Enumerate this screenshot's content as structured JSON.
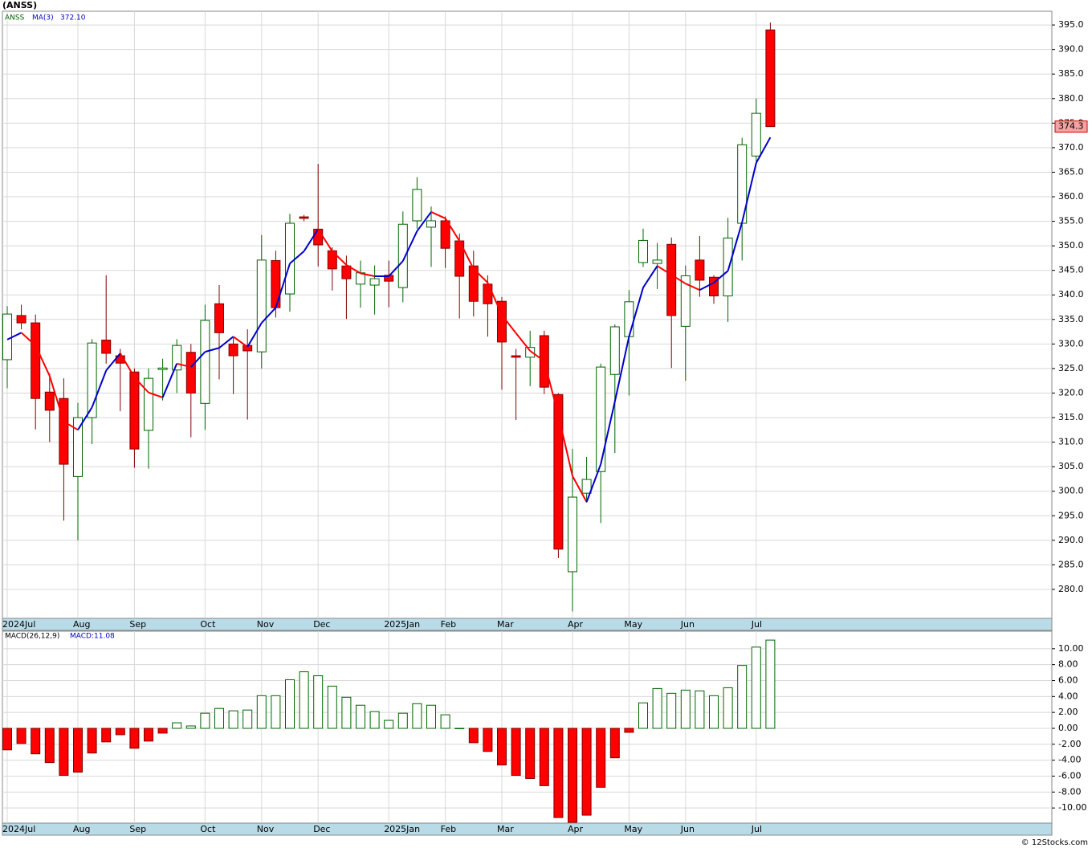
{
  "title": "(ANSS)",
  "footer": "© 12Stocks.com",
  "chart_data": [
    {
      "type": "candlestick",
      "name": "ANSS",
      "categories": [
        "2024Jul",
        null,
        null,
        null,
        null,
        "Aug",
        null,
        null,
        null,
        "Sep",
        null,
        null,
        null,
        null,
        "Oct",
        null,
        null,
        null,
        "Nov",
        null,
        null,
        null,
        "Dec",
        null,
        null,
        null,
        null,
        "2025Jan",
        null,
        null,
        null,
        "Feb",
        null,
        null,
        null,
        "Mar",
        null,
        null,
        null,
        null,
        "Apr",
        null,
        null,
        null,
        "May",
        null,
        null,
        null,
        "Jun",
        null,
        null,
        null,
        null,
        "Jul",
        null
      ],
      "open": [
        326.8,
        335.8,
        334.3,
        320.2,
        318.9,
        303.0,
        315.0,
        330.8,
        327.6,
        324.3,
        312.4,
        324.8,
        324.7,
        328.3,
        317.9,
        338.2,
        330.0,
        329.7,
        328.4,
        347.0,
        340.2,
        355.9,
        353.4,
        349.0,
        345.9,
        342.2,
        342.0,
        344.0,
        341.5,
        355.1,
        353.8,
        355.1,
        351.0,
        345.9,
        342.2,
        338.7,
        327.6,
        327.3,
        331.7,
        319.7,
        283.6,
        299.6,
        304.0,
        323.8,
        331.5,
        346.6,
        346.4,
        350.3,
        333.6,
        347.1,
        343.6,
        339.8,
        354.6,
        368.3,
        394.0
      ],
      "high": [
        337.7,
        338.0,
        336.0,
        324.0,
        323.0,
        318.0,
        331.0,
        344.0,
        329.0,
        325.0,
        325.0,
        327.0,
        331.0,
        330.0,
        338.0,
        342.0,
        331.5,
        333.0,
        352.2,
        349.0,
        356.5,
        356.3,
        366.7,
        349.7,
        348.0,
        347.0,
        346.0,
        347.0,
        357.0,
        364.0,
        358.0,
        356.0,
        352.5,
        349.0,
        344.0,
        339.6,
        329.0,
        332.7,
        332.7,
        320.0,
        308.6,
        307.0,
        326.0,
        334.0,
        341.0,
        353.5,
        350.6,
        351.7,
        346.0,
        352.0,
        344.0,
        355.7,
        372.0,
        380.0,
        395.5
      ],
      "low": [
        321.0,
        333.0,
        312.6,
        310.0,
        294.0,
        290.0,
        309.6,
        326.0,
        316.3,
        304.8,
        304.6,
        318.5,
        320.0,
        311.0,
        312.5,
        322.8,
        319.8,
        314.6,
        325.0,
        335.4,
        336.6,
        355.0,
        345.8,
        340.9,
        335.1,
        337.4,
        336.0,
        337.5,
        338.5,
        353.5,
        345.7,
        345.5,
        335.2,
        335.6,
        331.5,
        320.7,
        314.5,
        321.4,
        319.8,
        286.4,
        275.5,
        297.7,
        293.5,
        307.8,
        319.5,
        345.7,
        341.2,
        325.1,
        322.5,
        339.6,
        338.2,
        334.5,
        347.0,
        366.7,
        374.3
      ],
      "close": [
        336.1,
        334.3,
        318.9,
        316.5,
        305.5,
        315.0,
        330.2,
        328.1,
        326.1,
        308.6,
        323.0,
        325.1,
        329.7,
        320.0,
        334.8,
        332.3,
        327.6,
        328.6,
        347.1,
        337.4,
        354.6,
        355.6,
        350.2,
        345.3,
        343.3,
        344.5,
        343.3,
        342.8,
        354.4,
        361.5,
        355.1,
        349.5,
        343.8,
        338.7,
        338.2,
        330.4,
        327.3,
        329.3,
        321.2,
        288.2,
        298.8,
        302.4,
        325.3,
        333.5,
        338.6,
        351.1,
        347.1,
        335.8,
        343.9,
        343.0,
        339.8,
        351.6,
        370.6,
        377.0,
        374.3
      ],
      "up_color": "#006400",
      "down_color": "#ff0000",
      "last_price_label": "374.3",
      "ma": {
        "name": "MA(3)",
        "up_color": "#0000cc",
        "down_color": "#ff0000",
        "last_label": "372.10",
        "values": [
          330.9,
          332.3,
          329.7,
          323.5,
          314.2,
          312.5,
          317.1,
          324.6,
          328.1,
          323.2,
          320.1,
          319.1,
          326.0,
          325.3,
          328.4,
          329.2,
          331.5,
          329.4,
          334.3,
          337.4,
          346.4,
          348.9,
          353.4,
          348.9,
          346.1,
          344.4,
          343.8,
          343.8,
          346.9,
          353.0,
          356.9,
          355.6,
          351.0,
          345.3,
          342.5,
          335.9,
          332.2,
          328.6,
          326.5,
          315.5,
          303.1,
          297.8,
          305.5,
          318.3,
          331.5,
          341.5,
          345.9,
          344.1,
          342.3,
          341.0,
          342.5,
          344.9,
          354.8,
          366.9,
          372.1
        ]
      },
      "ylim": [
        274.1,
        397.8
      ],
      "yticks": [
        {
          "value": 280,
          "label": "280.0"
        },
        {
          "value": 285,
          "label": "285.0"
        },
        {
          "value": 290,
          "label": "290.0"
        },
        {
          "value": 295,
          "label": "295.0"
        },
        {
          "value": 300,
          "label": "300.0"
        },
        {
          "value": 305,
          "label": "305.0"
        },
        {
          "value": 310,
          "label": "310.0"
        },
        {
          "value": 315,
          "label": "315.0"
        },
        {
          "value": 320,
          "label": "320.0"
        },
        {
          "value": 325,
          "label": "325.0"
        },
        {
          "value": 330,
          "label": "330.0"
        },
        {
          "value": 335,
          "label": "335.0"
        },
        {
          "value": 340,
          "label": "340.0"
        },
        {
          "value": 345,
          "label": "345.0"
        },
        {
          "value": 350,
          "label": "350.0"
        },
        {
          "value": 355,
          "label": "355.0"
        },
        {
          "value": 360,
          "label": "360.0"
        },
        {
          "value": 365,
          "label": "365.0"
        },
        {
          "value": 370,
          "label": "370.0"
        },
        {
          "value": 375,
          "label": "375.0"
        },
        {
          "value": 380,
          "label": "380.0"
        },
        {
          "value": 385,
          "label": "385.0"
        },
        {
          "value": 390,
          "label": "390.0"
        },
        {
          "value": 395,
          "label": "395.0"
        }
      ],
      "grid": true
    },
    {
      "type": "bar",
      "title": "MACD(26,12,9)",
      "label": "MACD:11.08",
      "categories": [
        "2024Jul",
        null,
        null,
        null,
        null,
        "Aug",
        null,
        null,
        null,
        "Sep",
        null,
        null,
        null,
        null,
        "Oct",
        null,
        null,
        null,
        "Nov",
        null,
        null,
        null,
        "Dec",
        null,
        null,
        null,
        null,
        "2025Jan",
        null,
        null,
        null,
        "Feb",
        null,
        null,
        null,
        "Mar",
        null,
        null,
        null,
        null,
        "Apr",
        null,
        null,
        null,
        "May",
        null,
        null,
        null,
        "Jun",
        null,
        null,
        null,
        null,
        "Jul",
        null
      ],
      "values": [
        -2.7,
        -1.9,
        -3.2,
        -4.3,
        -5.9,
        -5.5,
        -3.1,
        -1.7,
        -0.8,
        -2.5,
        -1.6,
        -0.6,
        0.7,
        0.3,
        1.9,
        2.5,
        2.2,
        2.3,
        4.1,
        4.1,
        6.1,
        7.1,
        6.6,
        5.3,
        3.9,
        2.9,
        2.1,
        1.0,
        1.9,
        3.1,
        2.9,
        1.7,
        0.0,
        -1.8,
        -2.9,
        -4.6,
        -5.9,
        -6.3,
        -7.2,
        -11.2,
        -11.8,
        -10.9,
        -7.4,
        -3.7,
        -0.5,
        3.2,
        5.0,
        4.4,
        4.8,
        4.7,
        4.1,
        5.1,
        7.9,
        10.2,
        11.08
      ],
      "up_color": "#006400",
      "down_color": "#ff0000",
      "ylim": [
        -11.9,
        12.2
      ],
      "yticks": [
        {
          "value": 10,
          "label": "10.00"
        },
        {
          "value": 8,
          "label": "8.00"
        },
        {
          "value": 6,
          "label": "6.00"
        },
        {
          "value": 4,
          "label": "4.00"
        },
        {
          "value": 2,
          "label": "2.00"
        },
        {
          "value": 0,
          "label": "0.00"
        },
        {
          "value": -2,
          "label": "-2.00"
        },
        {
          "value": -4,
          "label": "-4.00"
        },
        {
          "value": -6,
          "label": "-6.00"
        },
        {
          "value": -8,
          "label": "-8.00"
        },
        {
          "value": -10,
          "label": "-10.00"
        }
      ],
      "grid": true
    }
  ]
}
